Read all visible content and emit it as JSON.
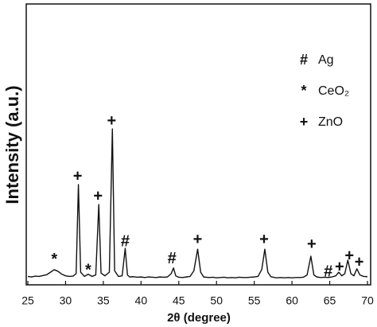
{
  "chart_data": {
    "type": "line",
    "x_label": "2θ (degree)",
    "y_label": "Intensity (a.u.)",
    "xlim": [
      25,
      70
    ],
    "xticks": [
      25,
      30,
      35,
      40,
      45,
      50,
      55,
      60,
      65,
      70
    ],
    "ylim": [
      0,
      100
    ],
    "series": [
      {
        "color": "#111111",
        "x": [
          25,
          25.5,
          26,
          26.5,
          27,
          27.5,
          28,
          28.5,
          29,
          29.5,
          30,
          30.5,
          31,
          31.4,
          31.7,
          32,
          32.5,
          33,
          33.5,
          34,
          34.4,
          34.7,
          35.2,
          35.8,
          36.2,
          36.5,
          37,
          37.5,
          37.9,
          38.2,
          38.5,
          39,
          39.5,
          40,
          40.5,
          41,
          41.5,
          42,
          42.5,
          43,
          43.5,
          44,
          44.3,
          44.6,
          45,
          45.5,
          46,
          46.5,
          47,
          47.5,
          47.9,
          48.3,
          49,
          49.5,
          50,
          50.5,
          51,
          51.5,
          52,
          52.5,
          53,
          53.5,
          54,
          54.5,
          55,
          55.5,
          56,
          56.4,
          56.8,
          57.2,
          57.7,
          58,
          58.5,
          59,
          59.5,
          60,
          60.5,
          61,
          61.5,
          62,
          62.5,
          62.9,
          63.3,
          63.8,
          64.3,
          64.8,
          65.3,
          65.8,
          66.2,
          66.6,
          67,
          67.4,
          67.8,
          68.2,
          68.6,
          69,
          69.5,
          70
        ],
        "values": [
          3.0,
          2.8,
          3.1,
          3.0,
          3.3,
          3.6,
          4.5,
          5.4,
          4.8,
          3.8,
          3.2,
          3.0,
          3.1,
          4.0,
          35.7,
          4.5,
          3.0,
          3.8,
          3.0,
          3.5,
          28.6,
          4.2,
          3.2,
          4.5,
          55.5,
          5.0,
          3.0,
          3.2,
          13.0,
          3.5,
          2.8,
          2.9,
          2.7,
          2.8,
          2.6,
          2.8,
          2.7,
          2.6,
          2.8,
          2.7,
          2.8,
          4.0,
          6.0,
          3.2,
          2.7,
          2.6,
          2.8,
          3.0,
          5.0,
          12.7,
          4.5,
          2.8,
          2.6,
          2.7,
          2.5,
          2.6,
          2.7,
          2.5,
          2.6,
          2.5,
          2.7,
          2.6,
          2.6,
          2.7,
          2.8,
          3.0,
          5.5,
          12.7,
          4.5,
          2.9,
          2.6,
          2.5,
          2.6,
          2.5,
          2.6,
          2.5,
          2.6,
          2.6,
          2.7,
          3.5,
          10.2,
          3.5,
          2.8,
          2.6,
          2.7,
          2.6,
          2.8,
          3.2,
          4.5,
          3.2,
          4.0,
          8.8,
          4.0,
          3.2,
          5.7,
          3.5,
          3.0,
          2.9
        ]
      }
    ],
    "annotations": [
      {
        "text": "*",
        "x": 28.5,
        "y": 8.8
      },
      {
        "text": "+",
        "x": 31.6,
        "y": 38.5
      },
      {
        "text": "*",
        "x": 33.0,
        "y": 5.1
      },
      {
        "text": "+",
        "x": 34.3,
        "y": 31.4
      },
      {
        "text": "+",
        "x": 36.1,
        "y": 58.1
      },
      {
        "text": "#",
        "x": 37.9,
        "y": 15.3
      },
      {
        "text": "#",
        "x": 44.1,
        "y": 9.1
      },
      {
        "text": "+",
        "x": 47.5,
        "y": 15.9
      },
      {
        "text": "+",
        "x": 56.3,
        "y": 15.9
      },
      {
        "text": "+",
        "x": 62.6,
        "y": 14.2
      },
      {
        "text": "#",
        "x": 64.8,
        "y": 4.5
      },
      {
        "text": "+",
        "x": 66.3,
        "y": 6.2
      },
      {
        "text": "+",
        "x": 67.6,
        "y": 10.2
      },
      {
        "text": "+",
        "x": 68.9,
        "y": 7.9
      }
    ],
    "legend": [
      {
        "symbol": "#",
        "label": "Ag"
      },
      {
        "symbol": "*",
        "label": "CeO₂"
      },
      {
        "symbol": "+",
        "label": "ZnO"
      }
    ]
  }
}
